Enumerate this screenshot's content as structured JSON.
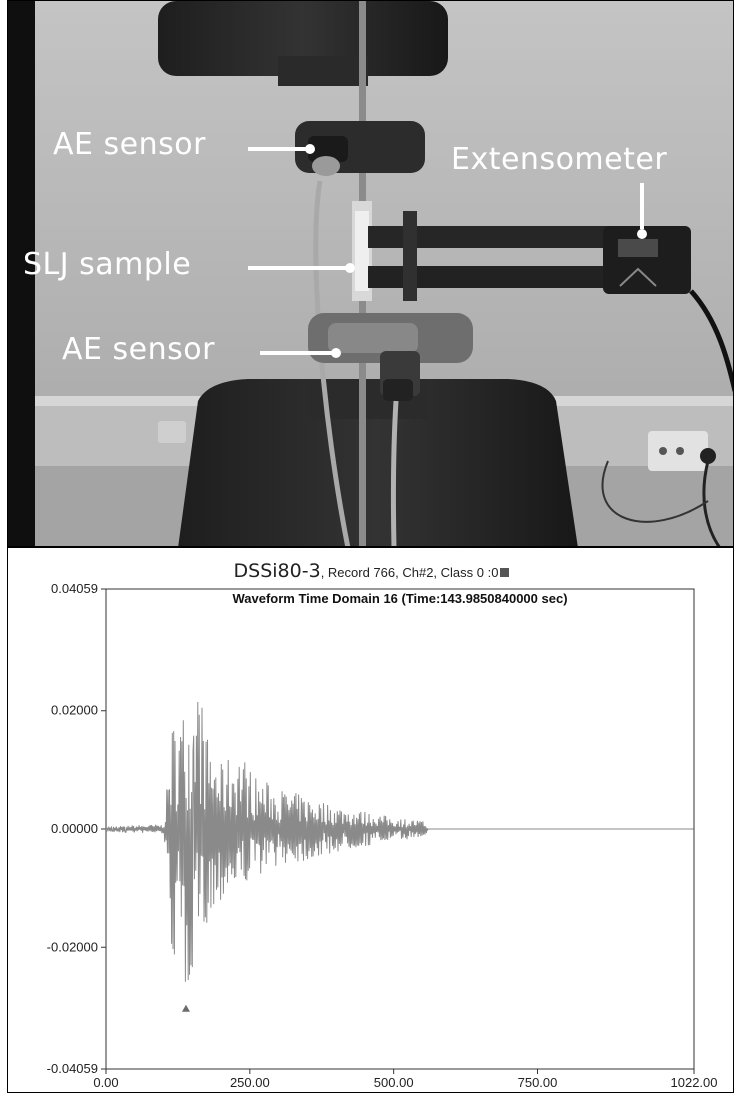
{
  "photo": {
    "labels": {
      "ae_sensor_top": "AE sensor",
      "extensometer": "Extensometer",
      "slj_sample": "SLJ sample",
      "ae_sensor_bottom": "AE sensor"
    }
  },
  "chart": {
    "header_sample": "DSSi80-3",
    "header_meta": ", Record 766, Ch#2, Class 0 :0",
    "inner_title": "Waveform Time Domain   16 (Time:143.9850840000 sec)"
  },
  "chart_data": {
    "type": "line",
    "title": "Waveform Time Domain   16 (Time:143.9850840000 sec)",
    "xlabel": "",
    "ylabel": "",
    "xlim": [
      0,
      1022
    ],
    "ylim": [
      -0.04059,
      0.04059
    ],
    "x_tick_labels": [
      "0.00",
      "250.00",
      "500.00",
      "750.00",
      "1022.00"
    ],
    "x_ticks": [
      0,
      250,
      500,
      750,
      1022
    ],
    "y_tick_labels": [
      "0.04059",
      "0.02000",
      "0.00000",
      "-0.02000",
      "-0.04059"
    ],
    "y_ticks": [
      0.04059,
      0.02,
      0,
      -0.02,
      -0.04059
    ],
    "series_color": "#8a8a8a",
    "envelope": {
      "x": [
        0,
        100,
        105,
        115,
        130,
        140,
        150,
        160,
        175,
        200,
        230,
        260,
        300,
        350,
        400,
        450,
        500,
        545,
        555,
        560,
        1022
      ],
      "upper": [
        0.0005,
        0.0008,
        0.006,
        0.018,
        0.02,
        0.021,
        0.02,
        0.027,
        0.016,
        0.011,
        0.014,
        0.009,
        0.007,
        0.0055,
        0.004,
        0.003,
        0.002,
        0.0015,
        0.0012,
        0,
        0
      ],
      "lower": [
        -0.0005,
        -0.0008,
        -0.01,
        -0.022,
        -0.026,
        -0.029,
        -0.024,
        -0.02,
        -0.016,
        -0.012,
        -0.01,
        -0.008,
        -0.006,
        -0.0055,
        -0.004,
        -0.003,
        -0.002,
        -0.0015,
        -0.0012,
        0,
        0
      ]
    },
    "marker": {
      "x": 139,
      "label": "trigger marker",
      "color": "#6b6b6b"
    },
    "grid": false,
    "legend": "none"
  }
}
